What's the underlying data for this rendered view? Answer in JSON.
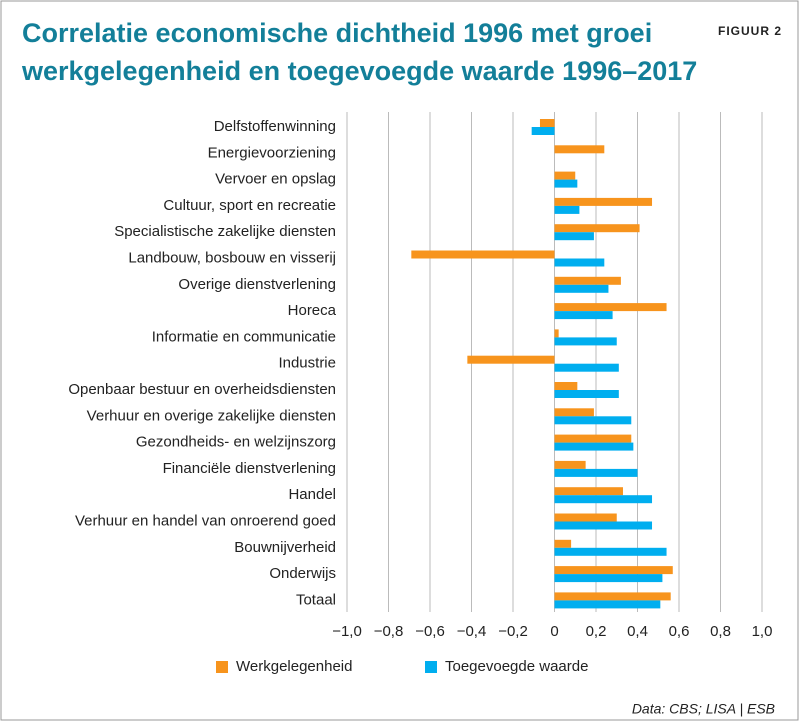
{
  "chart_data": {
    "type": "hbar",
    "title": "Correlatie economische dichtheid 1996 met groei werkgelegenheid en toegevoegde waarde 1996–2017",
    "figure_label": "FIGUUR 2",
    "source": "Data: CBS; LISA | ESB",
    "categories": [
      "Delfstoffenwinning",
      "Energievoorziening",
      "Vervoer en opslag",
      "Cultuur, sport en recreatie",
      "Specialistische zakelijke diensten",
      "Landbouw, bosbouw en visserij",
      "Overige dienstverlening",
      "Horeca",
      "Informatie en communicatie",
      "Industrie",
      "Openbaar bestuur en overheidsdiensten",
      "Verhuur en overige zakelijke diensten",
      "Gezondheids- en welzijnszorg",
      "Financiële dienstverlening",
      "Handel",
      "Verhuur en handel van onroerend goed",
      "Bouwnijverheid",
      "Onderwijs",
      "Totaal"
    ],
    "series": [
      {
        "name": "Werkgelegenheid",
        "color": "#f7941d",
        "values": [
          -0.07,
          0.24,
          0.1,
          0.47,
          0.41,
          -0.69,
          0.32,
          0.54,
          0.02,
          -0.42,
          0.11,
          0.19,
          0.37,
          0.15,
          0.33,
          0.3,
          0.08,
          0.57,
          0.56
        ]
      },
      {
        "name": "Toegevoegde waarde",
        "color": "#00aeef",
        "values": [
          -0.11,
          null,
          0.11,
          0.12,
          0.19,
          0.24,
          0.26,
          0.28,
          0.3,
          0.31,
          0.31,
          0.37,
          0.38,
          0.4,
          0.47,
          0.47,
          0.54,
          0.52,
          0.51
        ]
      }
    ],
    "xlim": [
      -1.0,
      1.0
    ],
    "xticks": [
      {
        "value": -1.0,
        "label": "−1,0"
      },
      {
        "value": -0.8,
        "label": "−0,8"
      },
      {
        "value": -0.6,
        "label": "−0,6"
      },
      {
        "value": -0.4,
        "label": "−0,4"
      },
      {
        "value": -0.2,
        "label": "−0,2"
      },
      0,
      {
        "value": 0.2,
        "label": "0,2"
      },
      {
        "value": 0.4,
        "label": "0,4"
      },
      {
        "value": 0.6,
        "label": "0,6"
      },
      {
        "value": 0.8,
        "label": "0,8"
      },
      {
        "value": 1.0,
        "label": "1,0"
      }
    ],
    "grid": true
  }
}
